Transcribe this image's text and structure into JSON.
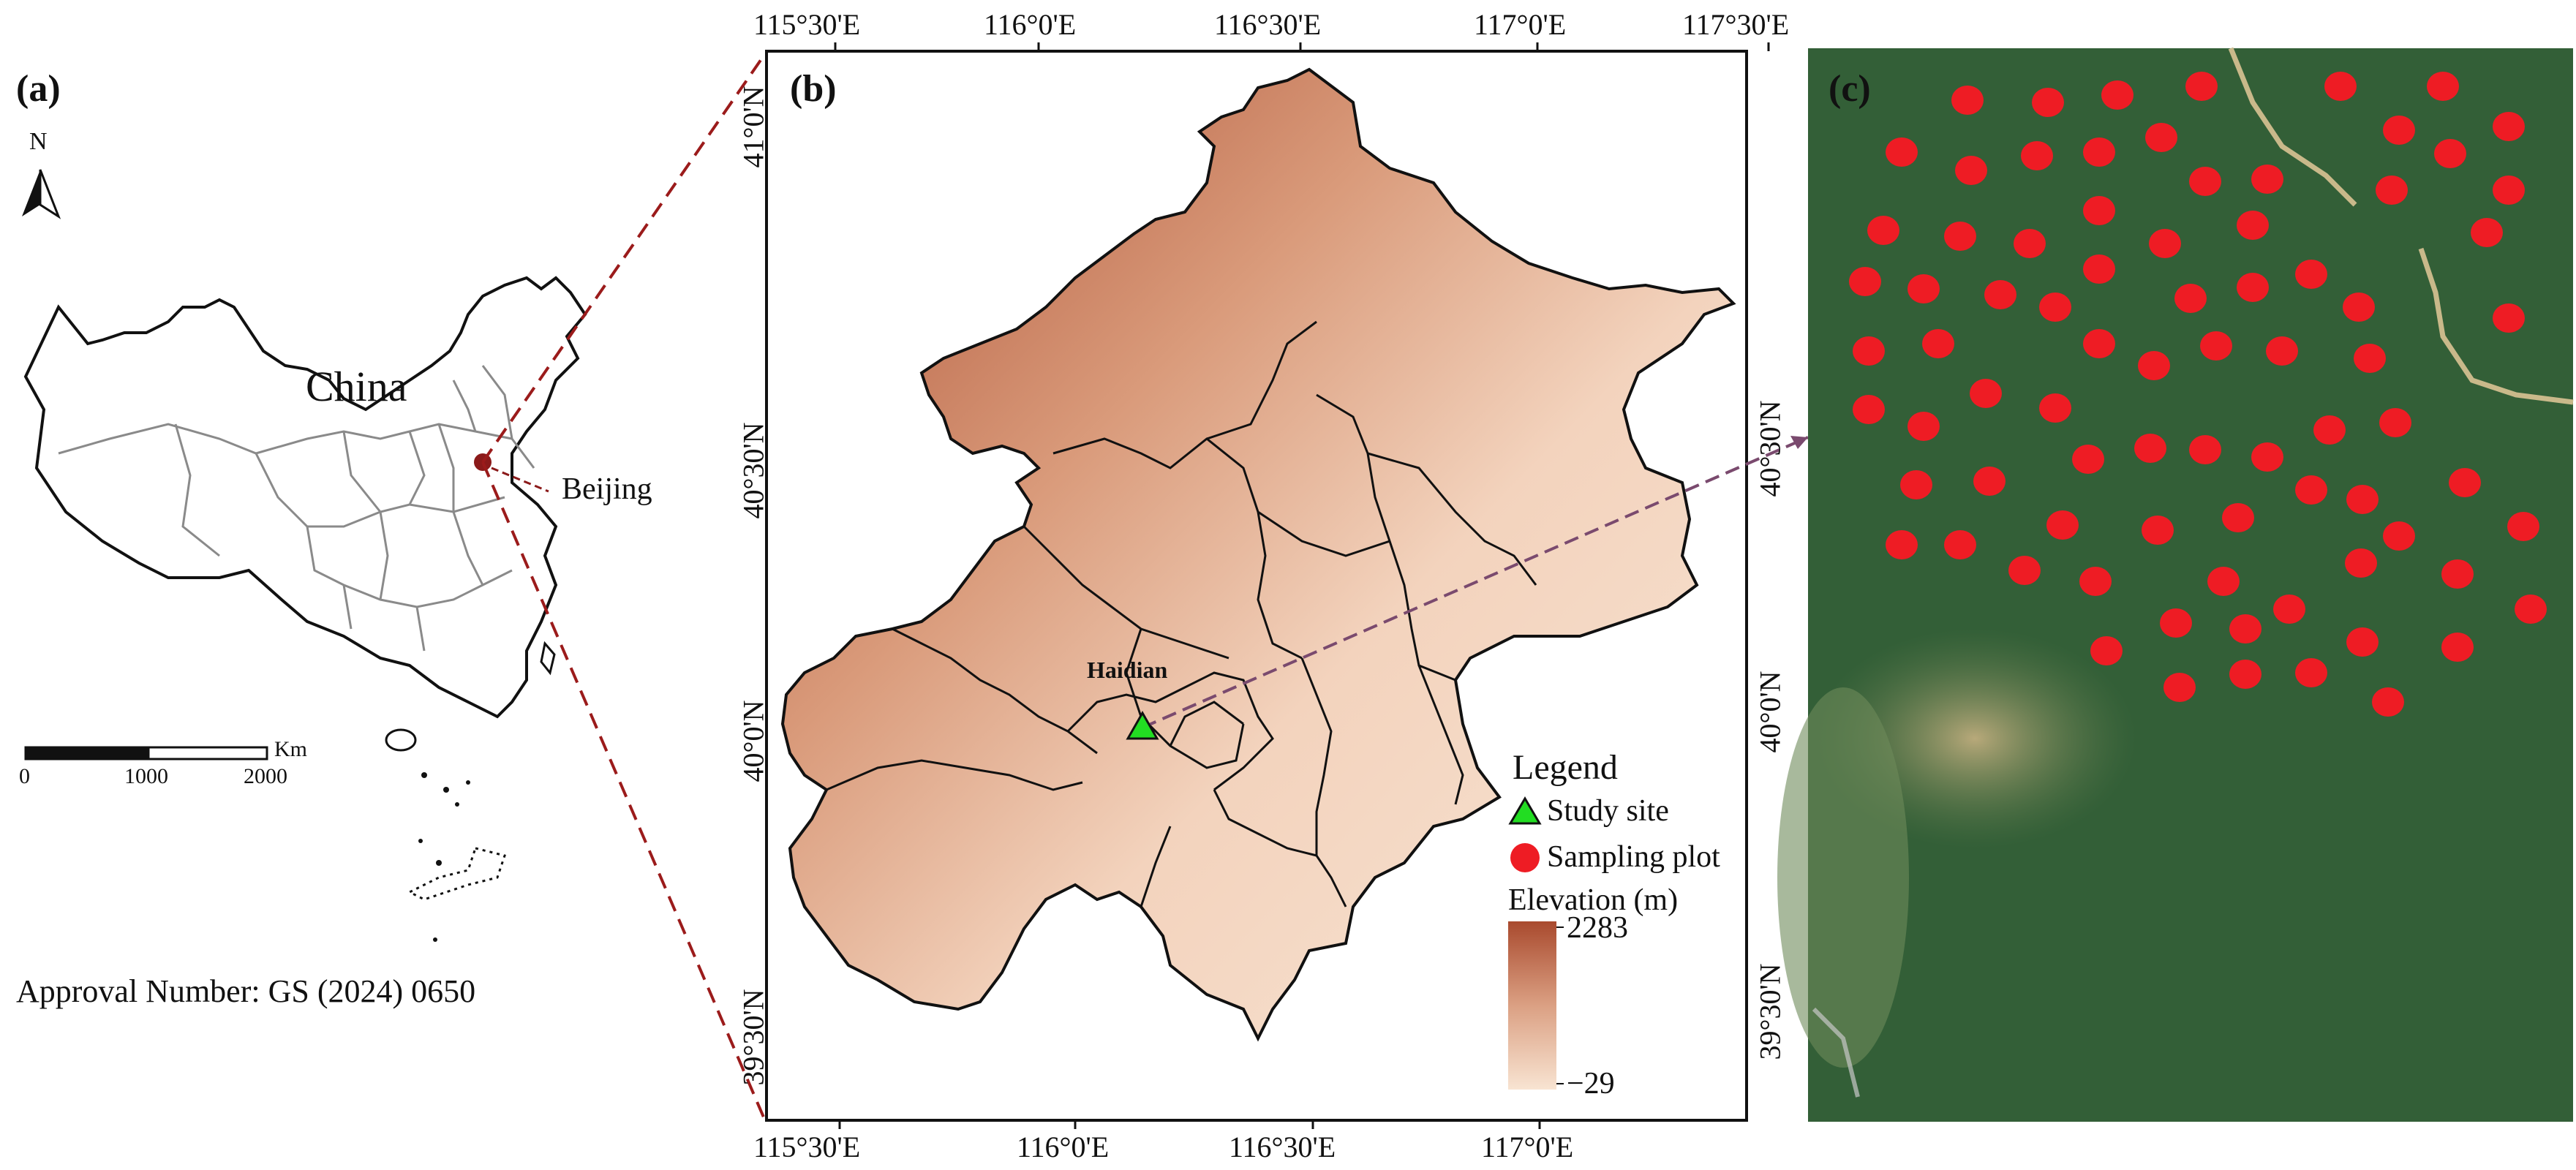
{
  "panels": {
    "a": {
      "label": "(a)",
      "north_letter": "N",
      "country_label": "China",
      "city_label": "Beijing",
      "scale_unit": "Km",
      "scale_ticks": [
        "0",
        "1000",
        "2000"
      ],
      "approval": "Approval Number: GS (2024) 0650"
    },
    "b": {
      "label": "(b)",
      "top_ticks": [
        "115°30'E",
        "116°0'E",
        "116°30'E",
        "117°0'E",
        "117°30'E"
      ],
      "bottom_ticks": [
        "115°30'E",
        "116°0'E",
        "116°30'E",
        "117°0'E"
      ],
      "left_ticks": [
        "41°0'N",
        "40°30'N",
        "40°0'N",
        "39°30'N"
      ],
      "right_ticks": [
        "40°30'N",
        "40°0'N",
        "39°30'N"
      ],
      "district_label": "Haidian",
      "legend": {
        "title": "Legend",
        "study_site": "Study site",
        "sampling_plot": "Sampling plot",
        "elevation_title": "Elevation (m)",
        "elev_max": "2283",
        "elev_min": "−29"
      },
      "colors": {
        "study_site": "#22dd22",
        "plot": "#ee1c24",
        "elev_high": "#a94a2e",
        "elev_low": "#f8e4d2"
      }
    },
    "c": {
      "label": "(c)"
    }
  }
}
